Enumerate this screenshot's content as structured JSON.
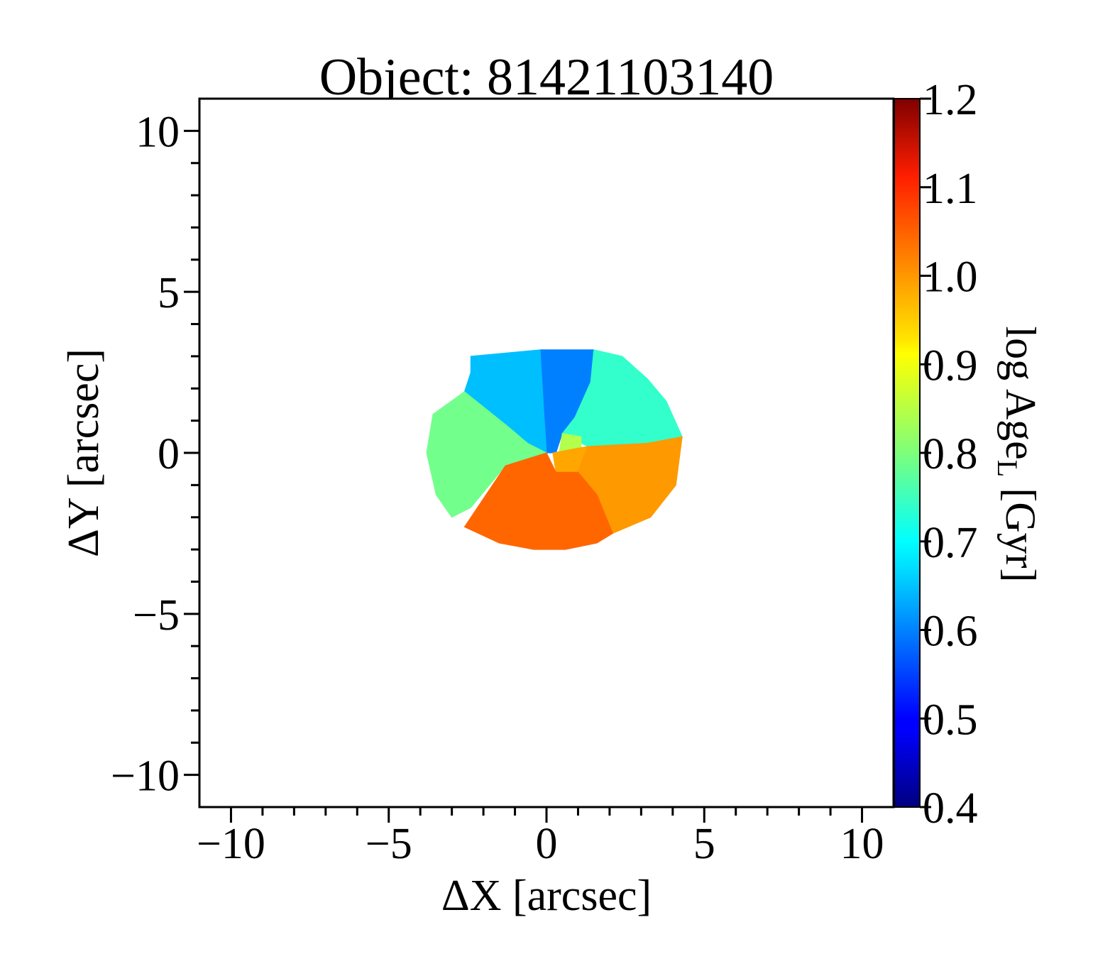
{
  "chart_data": {
    "type": "heatmap",
    "title": "Object: 81421103140",
    "xlabel": "ΔX [arcsec]",
    "ylabel": "ΔY [arcsec]",
    "colorbar_label_main": "log Age",
    "colorbar_label_sub": "L",
    "colorbar_label_unit": " [Gyr]",
    "xlim": [
      -11,
      11
    ],
    "ylim": [
      -11,
      11
    ],
    "x_ticks": [
      -10,
      -5,
      0,
      5,
      10
    ],
    "x_tick_labels": [
      "−10",
      "−5",
      "0",
      "5",
      "10"
    ],
    "y_ticks": [
      -10,
      -5,
      0,
      5,
      10
    ],
    "y_tick_labels": [
      "−10",
      "−5",
      "0",
      "5",
      "10"
    ],
    "colorbar_range": [
      0.4,
      1.2
    ],
    "colorbar_ticks": [
      0.4,
      0.5,
      0.6,
      0.7,
      0.8,
      0.9,
      1.0,
      1.1,
      1.2
    ],
    "colorbar_tick_labels": [
      "0.4",
      "0.5",
      "0.6",
      "0.7",
      "0.8",
      "0.9",
      "1.0",
      "1.1",
      "1.2"
    ],
    "colormap": "jet",
    "grid": false,
    "bins": [
      {
        "id": "top-center",
        "value": 0.6,
        "polygon": [
          [
            -0.2,
            3.2
          ],
          [
            1.5,
            3.2
          ],
          [
            1.4,
            2.2
          ],
          [
            0.9,
            1.1
          ],
          [
            0.5,
            0.6
          ],
          [
            0.3,
            0.0
          ],
          [
            0.0,
            0.0
          ],
          [
            -0.1,
            1.5
          ]
        ]
      },
      {
        "id": "top-left",
        "value": 0.65,
        "polygon": [
          [
            -2.4,
            3.0
          ],
          [
            -0.2,
            3.2
          ],
          [
            -0.1,
            1.5
          ],
          [
            0.0,
            0.0
          ],
          [
            -0.6,
            0.3
          ],
          [
            -1.2,
            0.8
          ],
          [
            -2.6,
            1.9
          ],
          [
            -2.4,
            2.5
          ]
        ]
      },
      {
        "id": "top-right",
        "value": 0.74,
        "polygon": [
          [
            1.5,
            3.2
          ],
          [
            2.4,
            3.0
          ],
          [
            3.2,
            2.3
          ],
          [
            3.8,
            1.6
          ],
          [
            4.3,
            0.5
          ],
          [
            3.2,
            0.3
          ],
          [
            1.3,
            0.2
          ],
          [
            0.5,
            0.6
          ],
          [
            0.9,
            1.1
          ],
          [
            1.4,
            2.2
          ]
        ]
      },
      {
        "id": "left",
        "value": 0.79,
        "polygon": [
          [
            -2.6,
            1.9
          ],
          [
            -1.2,
            0.8
          ],
          [
            -0.6,
            0.3
          ],
          [
            0.0,
            0.0
          ],
          [
            -1.3,
            -0.4
          ],
          [
            -2.4,
            -1.7
          ],
          [
            -3.0,
            -2.0
          ],
          [
            -3.5,
            -1.3
          ],
          [
            -3.8,
            0.0
          ],
          [
            -3.6,
            1.2
          ]
        ]
      },
      {
        "id": "center-small",
        "value": 0.84,
        "polygon": [
          [
            0.5,
            0.6
          ],
          [
            1.1,
            0.5
          ],
          [
            1.1,
            0.0
          ],
          [
            0.4,
            0.0
          ]
        ]
      },
      {
        "id": "center-orange",
        "value": 0.97,
        "polygon": [
          [
            0.2,
            0.0
          ],
          [
            1.3,
            0.2
          ],
          [
            1.0,
            -0.6
          ],
          [
            0.3,
            -0.6
          ]
        ]
      },
      {
        "id": "bottom-right",
        "value": 0.98,
        "polygon": [
          [
            1.3,
            0.2
          ],
          [
            3.2,
            0.3
          ],
          [
            4.3,
            0.5
          ],
          [
            4.1,
            -1.0
          ],
          [
            3.3,
            -2.0
          ],
          [
            2.1,
            -2.5
          ],
          [
            1.6,
            -1.3
          ],
          [
            1.0,
            -0.6
          ]
        ]
      },
      {
        "id": "bottom",
        "value": 1.02,
        "polygon": [
          [
            -1.3,
            -0.4
          ],
          [
            0.0,
            0.0
          ],
          [
            0.3,
            -0.6
          ],
          [
            1.0,
            -0.6
          ],
          [
            1.6,
            -1.3
          ],
          [
            2.1,
            -2.5
          ],
          [
            1.6,
            -2.8
          ],
          [
            0.6,
            -3.0
          ],
          [
            -0.4,
            -3.0
          ],
          [
            -1.5,
            -2.8
          ],
          [
            -2.6,
            -2.3
          ]
        ]
      }
    ]
  }
}
